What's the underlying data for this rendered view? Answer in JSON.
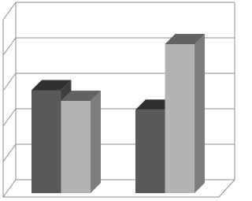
{
  "chart_data": {
    "type": "bar3d",
    "categories": [
      null,
      null
    ],
    "series": [
      {
        "color": "#595959",
        "values": [
          2.9,
          2.35
        ]
      },
      {
        "color": "#b3b3b3",
        "values": [
          2.6,
          4.2
        ]
      }
    ],
    "ylim": [
      0,
      5
    ],
    "yticks": [
      0,
      1,
      2,
      3,
      4,
      5
    ],
    "grid": true
  }
}
